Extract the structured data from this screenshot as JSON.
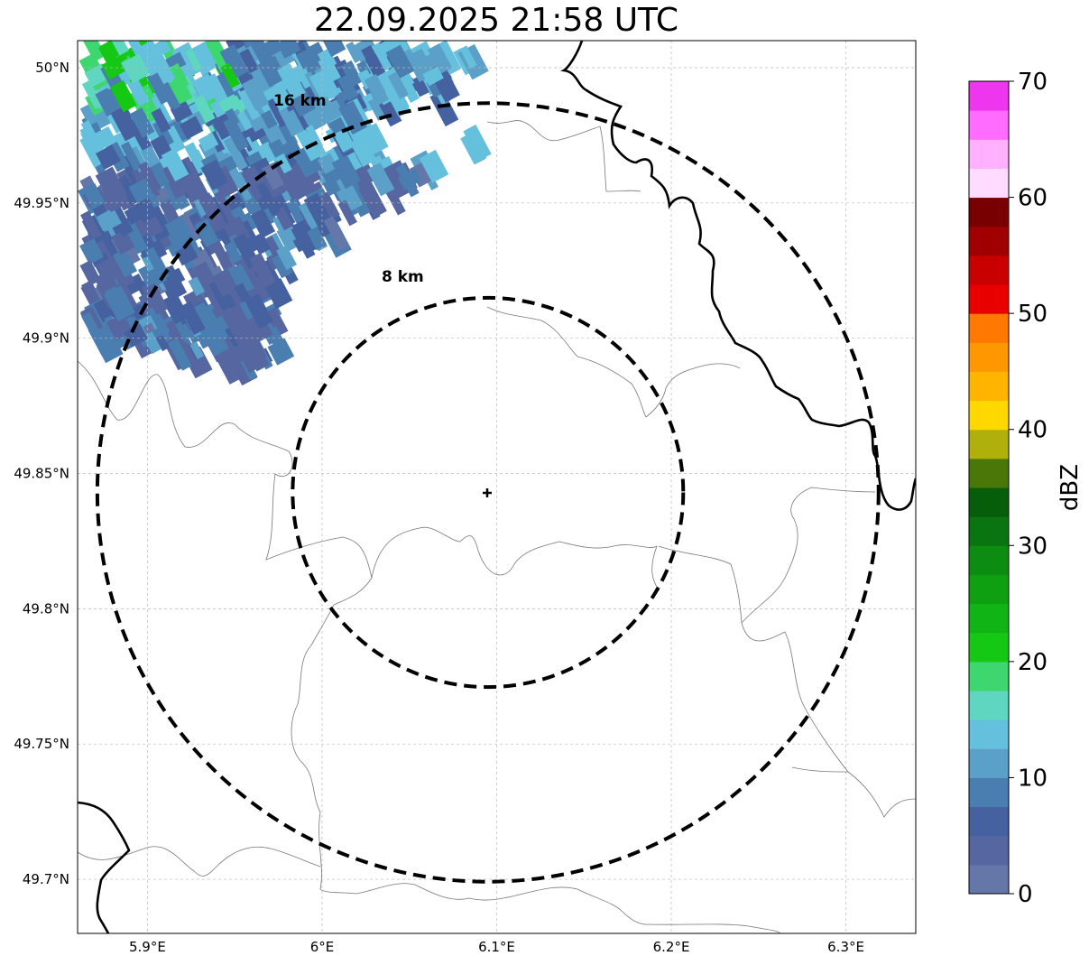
{
  "title": "22.09.2025 21:58 UTC",
  "map": {
    "lon_range": [
      5.86,
      6.34
    ],
    "lat_range": [
      49.68,
      50.01
    ],
    "lon_ticks": [
      {
        "value": 5.9,
        "label": "5.9°E"
      },
      {
        "value": 6.0,
        "label": "6°E"
      },
      {
        "value": 6.1,
        "label": "6.1°E"
      },
      {
        "value": 6.2,
        "label": "6.2°E"
      },
      {
        "value": 6.3,
        "label": "6.3°E"
      }
    ],
    "lat_ticks": [
      {
        "value": 50.0,
        "label": "50°N"
      },
      {
        "value": 49.95,
        "label": "49.95°N"
      },
      {
        "value": 49.9,
        "label": "49.9°N"
      },
      {
        "value": 49.85,
        "label": "49.85°N"
      },
      {
        "value": 49.8,
        "label": "49.8°N"
      },
      {
        "value": 49.75,
        "label": "49.75°N"
      },
      {
        "value": 49.7,
        "label": "49.7°N"
      }
    ],
    "gridlines": true,
    "radar_site": {
      "lon": 6.095,
      "lat": 49.843
    },
    "range_rings": [
      {
        "radius_km": 8,
        "label": "8 km"
      },
      {
        "radius_km": 16,
        "label": "16 km"
      }
    ]
  },
  "colorbar": {
    "label": "dBZ",
    "min": 0,
    "max": 70,
    "step": 2.5,
    "tick_labels": [
      "0",
      "10",
      "20",
      "30",
      "40",
      "50",
      "60",
      "70"
    ],
    "colors": [
      "#6477a8",
      "#5566a0",
      "#4561a0",
      "#4a7db0",
      "#5aa0c8",
      "#64c0dc",
      "#5ed6c0",
      "#3ed66e",
      "#14c814",
      "#10b414",
      "#0ea010",
      "#0c8c10",
      "#0a7410",
      "#065e0a",
      "#4a7808",
      "#b0b00a",
      "#ffd800",
      "#ffb400",
      "#ff9800",
      "#ff7800",
      "#e80000",
      "#c80000",
      "#a00000",
      "#780000",
      "#ffdcff",
      "#ffb0ff",
      "#ff6cff",
      "#ee36ee"
    ]
  },
  "echo": {
    "description_units": "dBZ",
    "typical_range": [
      0,
      20
    ]
  }
}
